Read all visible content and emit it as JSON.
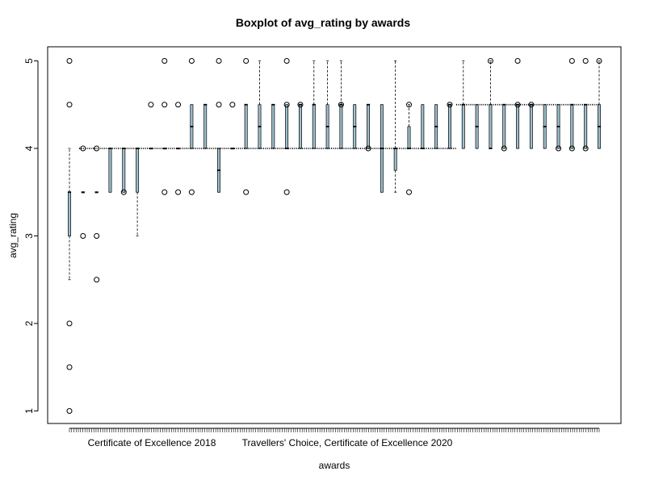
{
  "chart_data": {
    "type": "boxplot",
    "title": "Boxplot of avg_rating by awards",
    "xlabel": "awards",
    "ylabel": "avg_rating",
    "ylim": [
      1,
      5
    ],
    "yticks": [
      1,
      2,
      3,
      4,
      5
    ],
    "box_fill_color": "#9ec0d0",
    "visible_category_labels": [
      "Certificate of Excellence 2018",
      "Travellers' Choice, Certificate of Excellence 2020"
    ],
    "groups": [
      {
        "q1": 3.0,
        "median": 3.5,
        "q3": 3.5,
        "whisker_low": 2.5,
        "whisker_high": 4.0,
        "outliers": [
          1.0,
          1.5,
          2.0,
          4.5,
          5.0
        ]
      },
      {
        "q1": 3.5,
        "median": 3.5,
        "q3": 3.5,
        "whisker_low": 3.5,
        "whisker_high": 3.5,
        "outliers": [
          3.0,
          4.0
        ]
      },
      {
        "q1": 3.5,
        "median": 3.5,
        "q3": 3.5,
        "whisker_low": 3.5,
        "whisker_high": 3.5,
        "outliers": [
          2.5,
          3.0,
          4.0
        ]
      },
      {
        "q1": 3.5,
        "median": 4.0,
        "q3": 4.0,
        "whisker_low": 3.5,
        "whisker_high": 4.0,
        "outliers": []
      },
      {
        "q1": 3.5,
        "median": 4.0,
        "q3": 4.0,
        "whisker_low": 3.5,
        "whisker_high": 4.0,
        "outliers": [
          3.5
        ]
      },
      {
        "q1": 3.5,
        "median": 4.0,
        "q3": 4.0,
        "whisker_low": 3.0,
        "whisker_high": 4.0,
        "outliers": []
      },
      {
        "q1": 4.0,
        "median": 4.0,
        "q3": 4.0,
        "whisker_low": 4.0,
        "whisker_high": 4.0,
        "outliers": [
          4.5
        ]
      },
      {
        "q1": 4.0,
        "median": 4.0,
        "q3": 4.0,
        "whisker_low": 4.0,
        "whisker_high": 4.0,
        "outliers": [
          3.5,
          4.5,
          5.0
        ]
      },
      {
        "q1": 4.0,
        "median": 4.0,
        "q3": 4.0,
        "whisker_low": 4.0,
        "whisker_high": 4.0,
        "outliers": [
          3.5,
          4.5
        ]
      },
      {
        "q1": 4.0,
        "median": 4.25,
        "q3": 4.5,
        "whisker_low": 4.0,
        "whisker_high": 4.5,
        "outliers": [
          3.5,
          5.0
        ]
      },
      {
        "q1": 4.0,
        "median": 4.5,
        "q3": 4.5,
        "whisker_low": 4.0,
        "whisker_high": 4.5,
        "outliers": []
      },
      {
        "q1": 3.5,
        "median": 3.75,
        "q3": 4.0,
        "whisker_low": 3.5,
        "whisker_high": 4.0,
        "outliers": [
          4.5,
          5.0
        ]
      },
      {
        "q1": 4.0,
        "median": 4.0,
        "q3": 4.0,
        "whisker_low": 4.0,
        "whisker_high": 4.0,
        "outliers": [
          4.5
        ]
      },
      {
        "q1": 4.0,
        "median": 4.5,
        "q3": 4.5,
        "whisker_low": 4.0,
        "whisker_high": 4.5,
        "outliers": [
          3.5,
          5.0
        ]
      },
      {
        "q1": 4.0,
        "median": 4.25,
        "q3": 4.5,
        "whisker_low": 4.0,
        "whisker_high": 5.0,
        "outliers": []
      },
      {
        "q1": 4.0,
        "median": 4.5,
        "q3": 4.5,
        "whisker_low": 4.0,
        "whisker_high": 4.5,
        "outliers": []
      },
      {
        "q1": 4.0,
        "median": 4.0,
        "q3": 4.5,
        "whisker_low": 4.0,
        "whisker_high": 4.5,
        "outliers": [
          3.5,
          4.5,
          5.0
        ]
      },
      {
        "q1": 4.0,
        "median": 4.5,
        "q3": 4.5,
        "whisker_low": 4.0,
        "whisker_high": 4.5,
        "outliers": [
          4.5
        ]
      },
      {
        "q1": 4.0,
        "median": 4.5,
        "q3": 4.5,
        "whisker_low": 4.0,
        "whisker_high": 5.0,
        "outliers": []
      },
      {
        "q1": 4.0,
        "median": 4.25,
        "q3": 4.5,
        "whisker_low": 4.0,
        "whisker_high": 5.0,
        "outliers": []
      },
      {
        "q1": 4.0,
        "median": 4.5,
        "q3": 4.5,
        "whisker_low": 4.0,
        "whisker_high": 5.0,
        "outliers": [
          4.5
        ]
      },
      {
        "q1": 4.0,
        "median": 4.25,
        "q3": 4.5,
        "whisker_low": 4.0,
        "whisker_high": 4.5,
        "outliers": []
      },
      {
        "q1": 4.0,
        "median": 4.5,
        "q3": 4.5,
        "whisker_low": 4.0,
        "whisker_high": 4.5,
        "outliers": [
          4.0
        ]
      },
      {
        "q1": 3.5,
        "median": 4.0,
        "q3": 4.5,
        "whisker_low": 3.5,
        "whisker_high": 4.5,
        "outliers": []
      },
      {
        "q1": 3.75,
        "median": 4.0,
        "q3": 4.0,
        "whisker_low": 3.5,
        "whisker_high": 5.0,
        "outliers": []
      },
      {
        "q1": 4.0,
        "median": 4.0,
        "q3": 4.25,
        "whisker_low": 4.0,
        "whisker_high": 4.5,
        "outliers": [
          4.5,
          3.5
        ]
      },
      {
        "q1": 4.0,
        "median": 4.0,
        "q3": 4.5,
        "whisker_low": 4.0,
        "whisker_high": 4.5,
        "outliers": []
      },
      {
        "q1": 4.0,
        "median": 4.25,
        "q3": 4.5,
        "whisker_low": 4.0,
        "whisker_high": 4.5,
        "outliers": []
      },
      {
        "q1": 4.0,
        "median": 4.5,
        "q3": 4.5,
        "whisker_low": 4.0,
        "whisker_high": 4.5,
        "outliers": [
          4.5
        ]
      },
      {
        "q1": 4.0,
        "median": 4.5,
        "q3": 4.5,
        "whisker_low": 4.0,
        "whisker_high": 5.0,
        "outliers": []
      },
      {
        "q1": 4.0,
        "median": 4.25,
        "q3": 4.5,
        "whisker_low": 4.0,
        "whisker_high": 4.5,
        "outliers": []
      },
      {
        "q1": 4.0,
        "median": 4.0,
        "q3": 4.5,
        "whisker_low": 4.0,
        "whisker_high": 5.0,
        "outliers": [
          5.0
        ]
      },
      {
        "q1": 4.0,
        "median": 4.5,
        "q3": 4.5,
        "whisker_low": 4.0,
        "whisker_high": 4.5,
        "outliers": [
          4.0
        ]
      },
      {
        "q1": 4.0,
        "median": 4.5,
        "q3": 4.5,
        "whisker_low": 4.0,
        "whisker_high": 4.5,
        "outliers": [
          4.5,
          5.0
        ]
      },
      {
        "q1": 4.0,
        "median": 4.5,
        "q3": 4.5,
        "whisker_low": 4.0,
        "whisker_high": 4.5,
        "outliers": [
          4.5
        ]
      },
      {
        "q1": 4.0,
        "median": 4.25,
        "q3": 4.5,
        "whisker_low": 4.0,
        "whisker_high": 4.5,
        "outliers": []
      },
      {
        "q1": 4.0,
        "median": 4.25,
        "q3": 4.5,
        "whisker_low": 4.0,
        "whisker_high": 4.5,
        "outliers": [
          4.0
        ]
      },
      {
        "q1": 4.0,
        "median": 4.5,
        "q3": 4.5,
        "whisker_low": 4.0,
        "whisker_high": 4.5,
        "outliers": [
          4.0,
          5.0
        ]
      },
      {
        "q1": 4.0,
        "median": 4.5,
        "q3": 4.5,
        "whisker_low": 4.0,
        "whisker_high": 4.5,
        "outliers": [
          4.0,
          5.0
        ]
      },
      {
        "q1": 4.0,
        "median": 4.25,
        "q3": 4.5,
        "whisker_low": 4.0,
        "whisker_high": 5.0,
        "outliers": [
          5.0
        ]
      }
    ]
  }
}
